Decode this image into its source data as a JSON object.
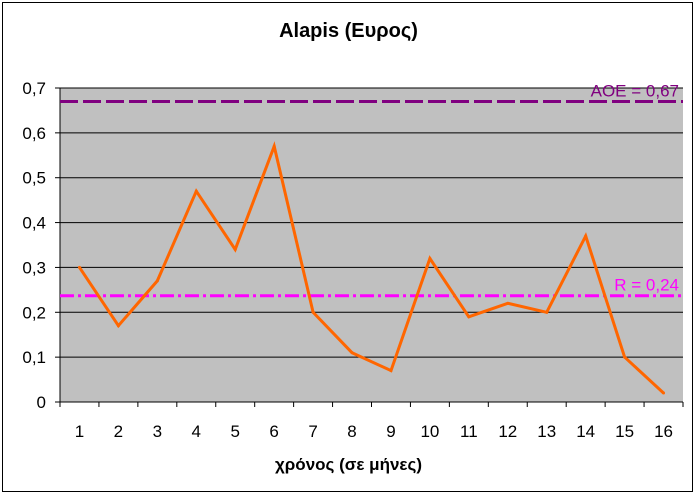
{
  "chart_data": {
    "type": "line",
    "title": "Alapis (Ευρος)",
    "xlabel": "χρόνος (σε μήνες)",
    "ylabel": "",
    "categories": [
      "1",
      "2",
      "3",
      "4",
      "5",
      "6",
      "7",
      "8",
      "9",
      "10",
      "11",
      "12",
      "13",
      "14",
      "15",
      "16"
    ],
    "series": [
      {
        "values": [
          0.3,
          0.17,
          0.27,
          0.47,
          0.34,
          0.57,
          0.2,
          0.11,
          0.07,
          0.32,
          0.19,
          0.22,
          0.2,
          0.37,
          0.1,
          0.02
        ]
      }
    ],
    "ylim": [
      0,
      0.7
    ],
    "yticks": [
      "0",
      "0,1",
      "0,2",
      "0,3",
      "0,4",
      "0,5",
      "0,6",
      "0,7"
    ],
    "grid": true,
    "reference_lines": [
      {
        "label": "AOE = 0,67",
        "value": 0.67,
        "color": "#800080"
      },
      {
        "label": "R = 0,24",
        "value": 0.237,
        "color": "#ff00ff"
      }
    ],
    "colors": {
      "series": "#ff6600",
      "plot_background": "#c0c0c0",
      "gridline": "#000000"
    }
  }
}
